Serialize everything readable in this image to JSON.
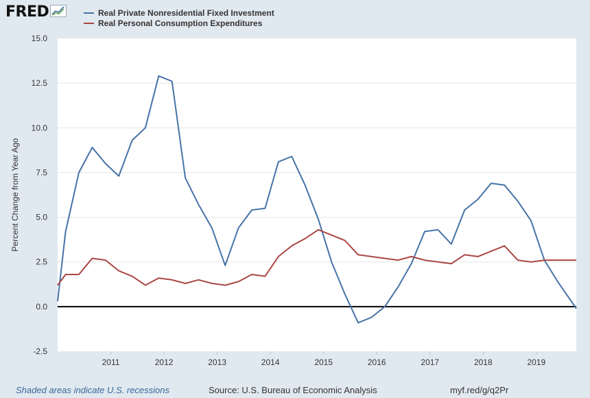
{
  "logo": {
    "text": "FRED",
    "icon": "chart-trend-icon"
  },
  "colors": {
    "series1": "#4572a7",
    "series2": "#aa4643",
    "zero_line": "#000000"
  },
  "chart_data": {
    "type": "line",
    "title": "",
    "xlabel": "",
    "ylabel": "Percent Change from Year Ago",
    "ylim": [
      -2.5,
      15
    ],
    "xlim": [
      2010.0,
      2019.75
    ],
    "y_ticks": [
      "15.0",
      "12.5",
      "10.0",
      "7.5",
      "5.0",
      "2.5",
      "0.0",
      "-2.5"
    ],
    "x_tick_labels": [
      "2011",
      "2012",
      "2013",
      "2014",
      "2015",
      "2016",
      "2017",
      "2018",
      "2019"
    ],
    "grid": true,
    "series": [
      {
        "name": "Real Private Nonresidential Fixed Investment",
        "color": "#4572a7",
        "x": [
          2010.0,
          2010.15,
          2010.4,
          2010.65,
          2010.9,
          2011.15,
          2011.4,
          2011.65,
          2011.9,
          2012.15,
          2012.4,
          2012.65,
          2012.9,
          2013.15,
          2013.4,
          2013.65,
          2013.9,
          2014.15,
          2014.4,
          2014.65,
          2014.9,
          2015.15,
          2015.4,
          2015.65,
          2015.9,
          2016.15,
          2016.4,
          2016.65,
          2016.9,
          2017.15,
          2017.4,
          2017.65,
          2017.9,
          2018.15,
          2018.4,
          2018.65,
          2018.9,
          2019.15,
          2019.4,
          2019.75
        ],
        "y": [
          0.3,
          4.2,
          7.5,
          8.9,
          8.0,
          7.3,
          9.3,
          10.0,
          12.9,
          12.6,
          7.2,
          5.7,
          4.4,
          2.3,
          4.4,
          5.4,
          5.5,
          8.1,
          8.4,
          6.8,
          4.9,
          2.5,
          0.7,
          -0.9,
          -0.6,
          0.0,
          1.1,
          2.4,
          4.2,
          4.3,
          3.5,
          5.4,
          6.0,
          6.9,
          6.8,
          5.9,
          4.8,
          2.6,
          1.4,
          -0.1
        ]
      },
      {
        "name": "Real Personal Consumption Expenditures",
        "color": "#aa4643",
        "x": [
          2010.0,
          2010.15,
          2010.4,
          2010.65,
          2010.9,
          2011.15,
          2011.4,
          2011.65,
          2011.9,
          2012.15,
          2012.4,
          2012.65,
          2012.9,
          2013.15,
          2013.4,
          2013.65,
          2013.9,
          2014.15,
          2014.4,
          2014.65,
          2014.9,
          2015.15,
          2015.4,
          2015.65,
          2015.9,
          2016.15,
          2016.4,
          2016.65,
          2016.9,
          2017.15,
          2017.4,
          2017.65,
          2017.9,
          2018.15,
          2018.4,
          2018.65,
          2018.9,
          2019.15,
          2019.4,
          2019.75
        ],
        "y": [
          1.2,
          1.8,
          1.8,
          2.7,
          2.6,
          2.0,
          1.7,
          1.2,
          1.6,
          1.5,
          1.3,
          1.5,
          1.3,
          1.2,
          1.4,
          1.8,
          1.7,
          2.8,
          3.4,
          3.8,
          4.3,
          4.0,
          3.7,
          2.9,
          2.8,
          2.7,
          2.6,
          2.8,
          2.6,
          2.5,
          2.4,
          2.9,
          2.8,
          3.1,
          3.4,
          2.6,
          2.5,
          2.6,
          2.6,
          2.6
        ]
      }
    ]
  },
  "footer": {
    "note": "Shaded areas indicate U.S. recessions",
    "source": "Source: U.S. Bureau of Economic Analysis",
    "link": "myf.red/g/q2Pr"
  }
}
